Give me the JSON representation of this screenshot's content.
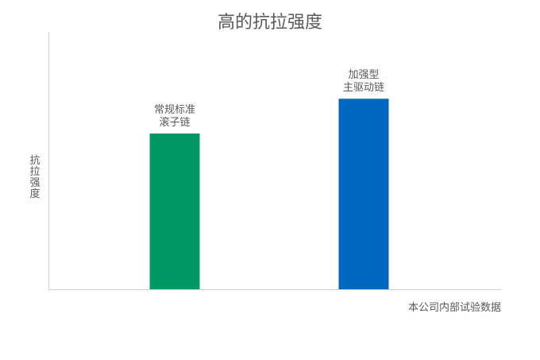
{
  "chart_data": {
    "type": "bar",
    "title": "高的抗拉强度",
    "ylabel": "抗拉强度",
    "xlabel": "",
    "note": "本公司内部试验数据",
    "categories": [
      "常规标准\n滚子链",
      "加强型\n主驱动链"
    ],
    "values": [
      60.5,
      74
    ],
    "colors": [
      "#009966",
      "#0069BF"
    ],
    "ylim": [
      0,
      100
    ],
    "grid": false,
    "legend": "none",
    "y_tick_labels": false
  }
}
